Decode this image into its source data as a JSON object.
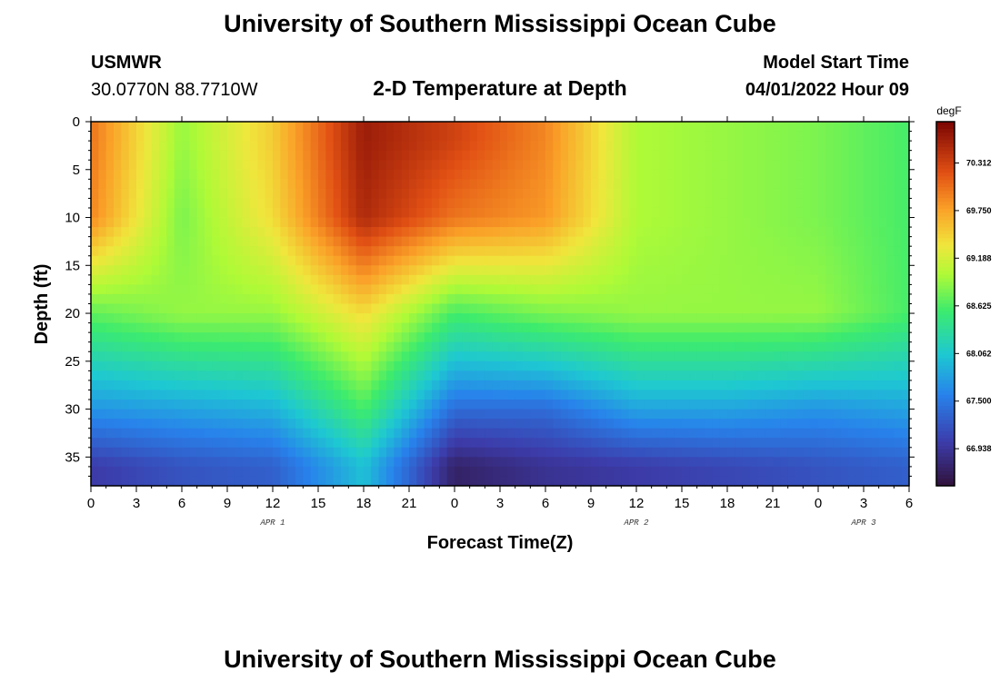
{
  "header": {
    "title": "University of Southern Mississippi Ocean Cube",
    "station": "USMWR",
    "coords": "30.0770N  88.7710W",
    "plot_title": "2-D Temperature at Depth",
    "model_label": "Model Start Time",
    "model_time": "04/01/2022 Hour 09"
  },
  "footer": {
    "title": "University of Southern Mississippi Ocean Cube"
  },
  "colors": {
    "background": "#ffffff",
    "text": "#000000"
  },
  "chart_data": {
    "type": "heatmap",
    "title": "2-D Temperature at Depth",
    "xlabel": "Forecast Time(Z)",
    "ylabel": "Depth (ft)",
    "x_range_hours": [
      0,
      54
    ],
    "y_range_ft": [
      0,
      38
    ],
    "x_tick_labels": [
      "0",
      "3",
      "6",
      "9",
      "12",
      "15",
      "18",
      "21",
      "0",
      "3",
      "6",
      "9",
      "12",
      "15",
      "18",
      "21",
      "0",
      "3",
      "6"
    ],
    "y_ticks": [
      0,
      5,
      10,
      15,
      20,
      25,
      30,
      35
    ],
    "date_labels": [
      {
        "text": "APR 1",
        "hour": 12
      },
      {
        "text": "APR 2",
        "hour": 36
      },
      {
        "text": "APR 3",
        "hour": 51
      }
    ],
    "colorbar": {
      "unit": "degF",
      "range": [
        66.5,
        70.8
      ],
      "tick_labels": [
        "70.312",
        "69.750",
        "69.188",
        "68.625",
        "68.062",
        "67.500",
        "66.938"
      ]
    },
    "temperature_profile_degF": {
      "description": "Approximate temperature (degF) at sampled forecast hours and depths",
      "hours": [
        0,
        6,
        12,
        18,
        24,
        30,
        36,
        42,
        48,
        54
      ],
      "depths_ft": [
        2,
        10,
        20,
        30,
        36
      ],
      "values": [
        [
          70.0,
          68.9,
          69.5,
          70.6,
          70.3,
          69.9,
          69.0,
          68.9,
          68.8,
          68.6
        ],
        [
          69.9,
          68.8,
          69.4,
          70.5,
          70.0,
          69.8,
          69.0,
          68.9,
          68.8,
          68.6
        ],
        [
          68.7,
          68.9,
          68.9,
          69.4,
          68.6,
          68.8,
          68.9,
          68.9,
          68.9,
          68.6
        ],
        [
          67.7,
          67.8,
          67.9,
          68.6,
          67.4,
          67.4,
          67.8,
          67.8,
          67.7,
          67.8
        ],
        [
          67.0,
          67.2,
          67.3,
          68.0,
          66.7,
          66.9,
          67.0,
          67.1,
          67.2,
          67.3
        ]
      ]
    }
  }
}
